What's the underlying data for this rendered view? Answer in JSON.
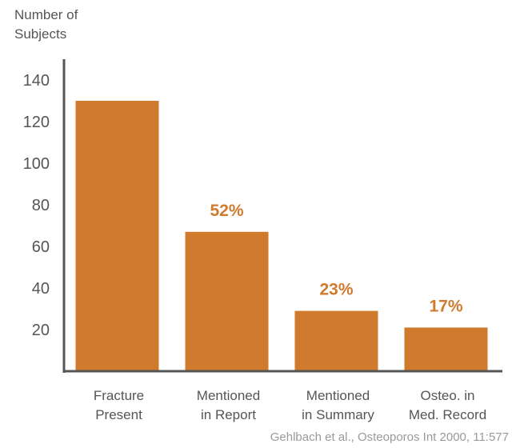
{
  "chart_data": {
    "type": "bar",
    "ylabel": "Number of Subjects",
    "ylabel_lines": [
      "Number of",
      "Subjects"
    ],
    "categories": [
      [
        "Fracture",
        "Present"
      ],
      [
        "Mentioned",
        "in Report"
      ],
      [
        "Mentioned",
        "in Summary"
      ],
      [
        "Osteo. in",
        "Med. Record"
      ]
    ],
    "values": [
      130,
      67,
      29,
      21
    ],
    "data_labels": [
      "",
      "52%",
      "23%",
      "17%"
    ],
    "yticks": [
      20,
      40,
      60,
      80,
      100,
      120,
      140
    ],
    "ylim": [
      0,
      150
    ],
    "grid": false,
    "legend": "none",
    "bar_color": "#cf7a2c",
    "label_color": "#d07a2e",
    "axis_color": "#555555"
  },
  "source": "Gehlbach et al., Osteoporos Int 2000, 11:577"
}
